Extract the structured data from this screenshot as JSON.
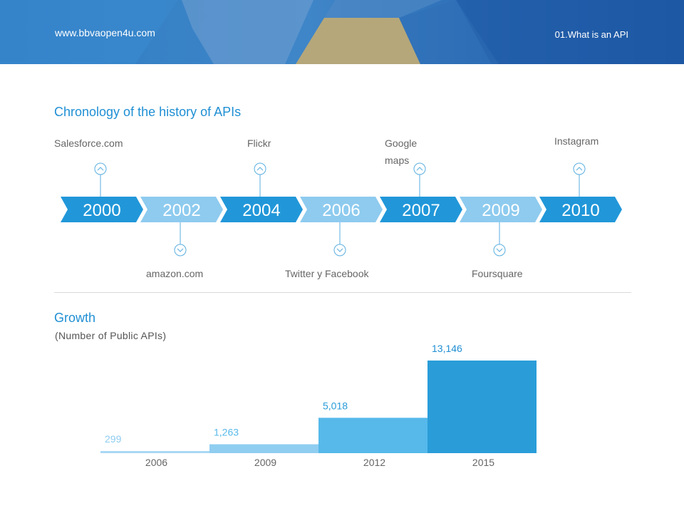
{
  "header": {
    "url": "www.bbvaopen4u.com",
    "section": "01.What is an API"
  },
  "timeline": {
    "title": "Chronology of the history of APIs",
    "years": [
      "2000",
      "2002",
      "2004",
      "2006",
      "2007",
      "2009",
      "2010"
    ],
    "events": [
      {
        "label": "Salesforce.com",
        "year": "2000",
        "side": "top"
      },
      {
        "label": "amazon.com",
        "year": "2002",
        "side": "bottom"
      },
      {
        "label": "Flickr",
        "year": "2004",
        "side": "top"
      },
      {
        "label": "Twitter y Facebook",
        "year": "2006",
        "side": "bottom"
      },
      {
        "label": "Google maps",
        "year": "2007",
        "side": "top"
      },
      {
        "label": "Foursquare",
        "year": "2009",
        "side": "bottom"
      },
      {
        "label": "Instagram",
        "year": "2010",
        "side": "top"
      }
    ],
    "colors": {
      "dark": "#2197d9",
      "light": "#8ecbef",
      "connector": "#5aaee0"
    }
  },
  "growth": {
    "title": "Growth",
    "subtitle": "(Number of Public APIs)"
  },
  "chart_data": {
    "type": "bar",
    "categories": [
      "2006",
      "2009",
      "2012",
      "2015"
    ],
    "values": [
      299,
      1263,
      5018,
      13146
    ],
    "value_labels": [
      "299",
      "1,263",
      "5,018",
      "13,146"
    ],
    "colors": [
      "#a9d8f4",
      "#8fcdf1",
      "#56b9ea",
      "#2a9dd9"
    ],
    "label_colors": [
      "#8fcdf1",
      "#56b9ea",
      "#2a9dd9",
      "#1f8fd4"
    ],
    "ylim": [
      0,
      13146
    ],
    "grid": false
  }
}
